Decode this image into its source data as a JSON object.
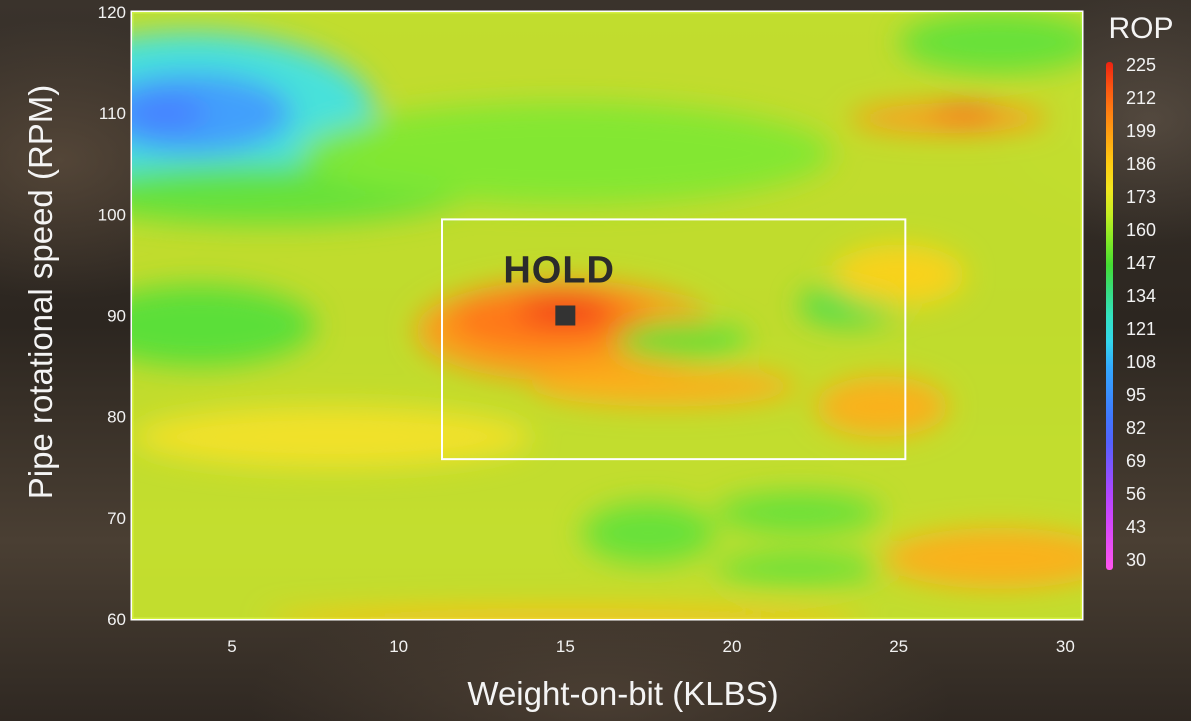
{
  "chart_data": {
    "type": "heatmap",
    "title": "",
    "xlabel": "Weight-on-bit (KLBS)",
    "ylabel": "Pipe rotational speed (RPM)",
    "xlim": [
      2,
      30.5
    ],
    "ylim": [
      60,
      120
    ],
    "x_ticks": [
      5,
      10,
      15,
      20,
      25,
      30
    ],
    "y_ticks": [
      60,
      70,
      80,
      90,
      100,
      110,
      120
    ],
    "colorbar": {
      "title": "ROP",
      "ticks": [
        225,
        212,
        199,
        186,
        173,
        160,
        147,
        134,
        121,
        108,
        95,
        82,
        69,
        56,
        43,
        30
      ],
      "range": [
        30,
        225
      ],
      "placement": "right"
    },
    "base_value": 168,
    "regions": [
      {
        "shape": "ellipse",
        "cx": 3.8,
        "cy": 110,
        "rx": 5.5,
        "ry": 8,
        "value": 120
      },
      {
        "shape": "ellipse",
        "cx": 3.8,
        "cy": 110,
        "rx": 3,
        "ry": 4,
        "value": 100
      },
      {
        "shape": "ellipse",
        "cx": 3,
        "cy": 110,
        "rx": 1.2,
        "ry": 2,
        "value": 90
      },
      {
        "shape": "ellipse",
        "cx": 6,
        "cy": 102,
        "rx": 6,
        "ry": 3,
        "value": 150
      },
      {
        "shape": "ellipse",
        "cx": 4,
        "cy": 89,
        "rx": 3.5,
        "ry": 4,
        "value": 148
      },
      {
        "shape": "ellipse",
        "cx": 15,
        "cy": 106,
        "rx": 8,
        "ry": 5,
        "value": 155
      },
      {
        "shape": "ellipse",
        "cx": 15,
        "cy": 88.5,
        "rx": 4.5,
        "ry": 5,
        "value": 200
      },
      {
        "shape": "ellipse",
        "cx": 14.5,
        "cy": 89.5,
        "rx": 3,
        "ry": 3,
        "value": 210
      },
      {
        "shape": "ellipse",
        "cx": 15,
        "cy": 90.5,
        "rx": 1.4,
        "ry": 1.5,
        "value": 222
      },
      {
        "shape": "ellipse",
        "cx": 18,
        "cy": 83,
        "rx": 4,
        "ry": 2,
        "value": 195
      },
      {
        "shape": "ellipse",
        "cx": 18.5,
        "cy": 87.5,
        "rx": 2,
        "ry": 2,
        "value": 150
      },
      {
        "shape": "ellipse",
        "cx": 23.5,
        "cy": 91,
        "rx": 1.5,
        "ry": 2,
        "value": 145
      },
      {
        "shape": "ellipse",
        "cx": 24.5,
        "cy": 81,
        "rx": 2,
        "ry": 3,
        "value": 195
      },
      {
        "shape": "ellipse",
        "cx": 25,
        "cy": 94,
        "rx": 2,
        "ry": 3,
        "value": 185
      },
      {
        "shape": "ellipse",
        "cx": 26.5,
        "cy": 109.5,
        "rx": 3,
        "ry": 1.5,
        "value": 200
      },
      {
        "shape": "ellipse",
        "cx": 27,
        "cy": 110,
        "rx": 1,
        "ry": 0.8,
        "value": 215
      },
      {
        "shape": "ellipse",
        "cx": 28,
        "cy": 117,
        "rx": 3,
        "ry": 3,
        "value": 150
      },
      {
        "shape": "ellipse",
        "cx": 17.5,
        "cy": 68.5,
        "rx": 2,
        "ry": 3,
        "value": 150
      },
      {
        "shape": "ellipse",
        "cx": 22,
        "cy": 70.5,
        "rx": 2.5,
        "ry": 2,
        "value": 150
      },
      {
        "shape": "ellipse",
        "cx": 22,
        "cy": 65,
        "rx": 2.5,
        "ry": 1.5,
        "value": 150
      },
      {
        "shape": "ellipse",
        "cx": 28,
        "cy": 66,
        "rx": 3.5,
        "ry": 3,
        "value": 195
      },
      {
        "shape": "ellipse",
        "cx": 15,
        "cy": 60,
        "rx": 9,
        "ry": 1.2,
        "value": 190
      },
      {
        "shape": "ellipse",
        "cx": 8,
        "cy": 78,
        "rx": 6,
        "ry": 3,
        "value": 178
      }
    ],
    "annotations": [
      {
        "text": "HOLD",
        "x": 15,
        "y": 90
      }
    ],
    "highlight_box": {
      "x": [
        11.3,
        25.2
      ],
      "y": [
        75.8,
        99.5
      ]
    }
  }
}
